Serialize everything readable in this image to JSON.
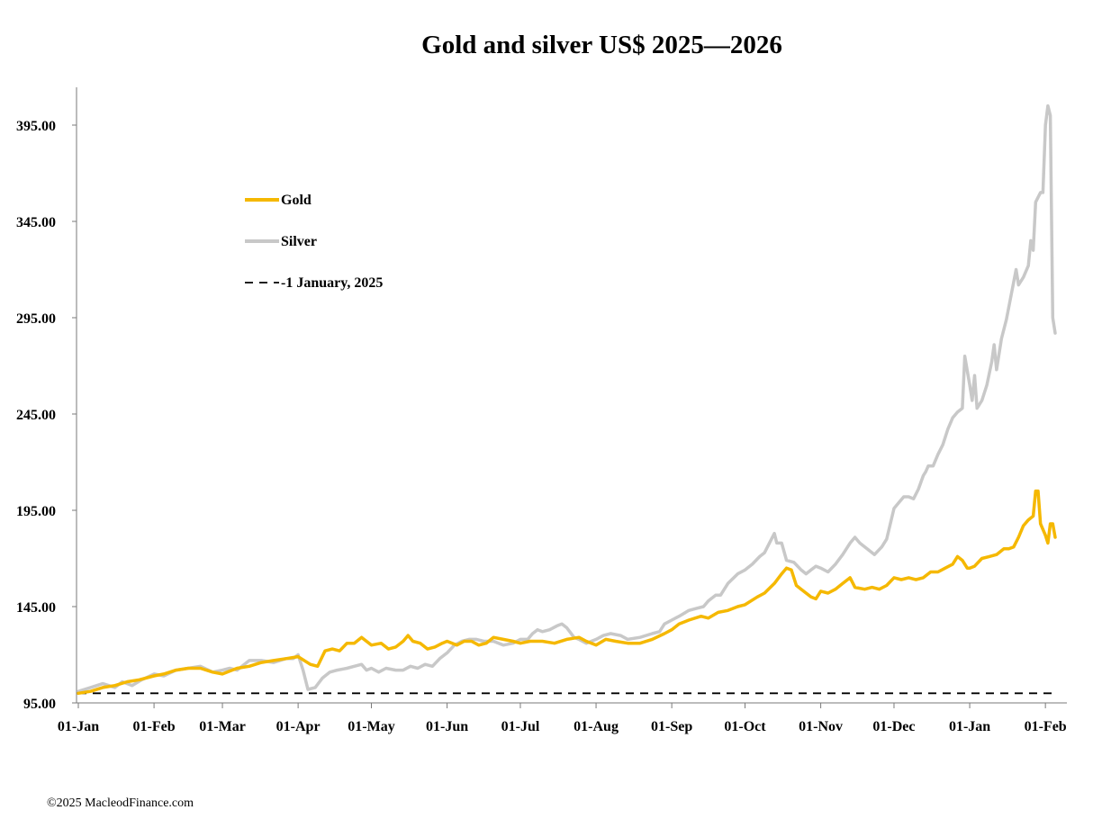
{
  "footer": {
    "credit": "©2025 MacleodFinance.com"
  },
  "colors": {
    "gold": "#F5B800",
    "silver": "#C8C8C8",
    "baseline": "#000000"
  },
  "chart_data": {
    "type": "line",
    "title": "Gold and silver  US$ 2025—2026",
    "xlabel": "",
    "ylabel": "",
    "ylim": [
      95,
      415
    ],
    "yticks": [
      95,
      145,
      195,
      245,
      295,
      345,
      395
    ],
    "ytick_labels": [
      "95.00",
      "145.00",
      "195.00",
      "245.00",
      "295.00",
      "345.00",
      "395.00"
    ],
    "xticks": [
      {
        "day": 0,
        "label": "01-Jan"
      },
      {
        "day": 31,
        "label": "01-Feb"
      },
      {
        "day": 59,
        "label": "01-Mar"
      },
      {
        "day": 90,
        "label": "01-Apr"
      },
      {
        "day": 120,
        "label": "01-May"
      },
      {
        "day": 151,
        "label": "01-Jun"
      },
      {
        "day": 181,
        "label": "01-Jul"
      },
      {
        "day": 212,
        "label": "01-Aug"
      },
      {
        "day": 243,
        "label": "01-Sep"
      },
      {
        "day": 273,
        "label": "01-Oct"
      },
      {
        "day": 304,
        "label": "01-Nov"
      },
      {
        "day": 334,
        "label": "01-Dec"
      },
      {
        "day": 365,
        "label": "01-Jan"
      },
      {
        "day": 396,
        "label": "01-Feb"
      }
    ],
    "xlim_days": [
      0,
      400
    ],
    "grid": false,
    "legend_position": "upper-left",
    "series": [
      {
        "name": "Gold",
        "style": "solid",
        "points": [
          [
            0,
            100
          ],
          [
            5,
            101
          ],
          [
            10,
            103
          ],
          [
            15,
            104
          ],
          [
            20,
            106
          ],
          [
            25,
            107
          ],
          [
            31,
            109
          ],
          [
            35,
            110
          ],
          [
            40,
            112
          ],
          [
            45,
            113
          ],
          [
            50,
            113
          ],
          [
            55,
            111
          ],
          [
            59,
            110
          ],
          [
            65,
            113
          ],
          [
            70,
            114
          ],
          [
            75,
            116
          ],
          [
            80,
            117
          ],
          [
            85,
            118
          ],
          [
            90,
            119
          ],
          [
            95,
            115
          ],
          [
            98,
            114
          ],
          [
            101,
            122
          ],
          [
            104,
            123
          ],
          [
            107,
            122
          ],
          [
            110,
            126
          ],
          [
            113,
            126
          ],
          [
            116,
            129
          ],
          [
            120,
            125
          ],
          [
            124,
            126
          ],
          [
            127,
            123
          ],
          [
            130,
            124
          ],
          [
            133,
            127
          ],
          [
            135,
            130
          ],
          [
            137,
            127
          ],
          [
            140,
            126
          ],
          [
            143,
            123
          ],
          [
            146,
            124
          ],
          [
            149,
            126
          ],
          [
            151,
            127
          ],
          [
            155,
            125
          ],
          [
            158,
            127
          ],
          [
            161,
            127
          ],
          [
            164,
            125
          ],
          [
            167,
            126
          ],
          [
            170,
            129
          ],
          [
            174,
            128
          ],
          [
            178,
            127
          ],
          [
            181,
            126
          ],
          [
            185,
            127
          ],
          [
            190,
            127
          ],
          [
            195,
            126
          ],
          [
            200,
            128
          ],
          [
            205,
            129
          ],
          [
            208,
            127
          ],
          [
            212,
            125
          ],
          [
            216,
            128
          ],
          [
            220,
            127
          ],
          [
            225,
            126
          ],
          [
            230,
            126
          ],
          [
            235,
            128
          ],
          [
            240,
            131
          ],
          [
            243,
            133
          ],
          [
            246,
            136
          ],
          [
            250,
            138
          ],
          [
            255,
            140
          ],
          [
            258,
            139
          ],
          [
            262,
            142
          ],
          [
            266,
            143
          ],
          [
            270,
            145
          ],
          [
            273,
            146
          ],
          [
            278,
            150
          ],
          [
            281,
            152
          ],
          [
            285,
            157
          ],
          [
            288,
            162
          ],
          [
            290,
            165
          ],
          [
            292,
            164
          ],
          [
            294,
            156
          ],
          [
            297,
            153
          ],
          [
            300,
            150
          ],
          [
            302,
            149
          ],
          [
            304,
            153
          ],
          [
            307,
            152
          ],
          [
            310,
            154
          ],
          [
            313,
            157
          ],
          [
            316,
            160
          ],
          [
            318,
            155
          ],
          [
            322,
            154
          ],
          [
            325,
            155
          ],
          [
            328,
            154
          ],
          [
            331,
            156
          ],
          [
            334,
            160
          ],
          [
            337,
            159
          ],
          [
            340,
            160
          ],
          [
            343,
            159
          ],
          [
            346,
            160
          ],
          [
            349,
            163
          ],
          [
            352,
            163
          ],
          [
            355,
            165
          ],
          [
            358,
            167
          ],
          [
            360,
            171
          ],
          [
            362,
            169
          ],
          [
            364,
            165
          ],
          [
            365,
            165
          ],
          [
            367,
            166
          ],
          [
            370,
            170
          ],
          [
            373,
            171
          ],
          [
            376,
            172
          ],
          [
            379,
            175
          ],
          [
            381,
            175
          ],
          [
            383,
            176
          ],
          [
            385,
            181
          ],
          [
            387,
            187
          ],
          [
            389,
            190
          ],
          [
            391,
            192
          ],
          [
            392,
            205
          ],
          [
            393,
            205
          ],
          [
            394,
            188
          ],
          [
            396,
            182
          ],
          [
            397,
            178
          ],
          [
            398,
            188
          ],
          [
            399,
            188
          ],
          [
            400,
            181
          ]
        ]
      },
      {
        "name": "Silver",
        "style": "solid",
        "points": [
          [
            0,
            101
          ],
          [
            5,
            103
          ],
          [
            10,
            105
          ],
          [
            15,
            103
          ],
          [
            18,
            106
          ],
          [
            22,
            104
          ],
          [
            26,
            107
          ],
          [
            31,
            110
          ],
          [
            35,
            109
          ],
          [
            40,
            112
          ],
          [
            45,
            113
          ],
          [
            50,
            114
          ],
          [
            55,
            111
          ],
          [
            59,
            112
          ],
          [
            62,
            113
          ],
          [
            65,
            112
          ],
          [
            70,
            117
          ],
          [
            75,
            117
          ],
          [
            80,
            116
          ],
          [
            85,
            118
          ],
          [
            88,
            118
          ],
          [
            90,
            120
          ],
          [
            92,
            112
          ],
          [
            94,
            102
          ],
          [
            97,
            103
          ],
          [
            100,
            108
          ],
          [
            103,
            111
          ],
          [
            106,
            112
          ],
          [
            110,
            113
          ],
          [
            113,
            114
          ],
          [
            116,
            115
          ],
          [
            118,
            112
          ],
          [
            120,
            113
          ],
          [
            123,
            111
          ],
          [
            126,
            113
          ],
          [
            130,
            112
          ],
          [
            133,
            112
          ],
          [
            136,
            114
          ],
          [
            139,
            113
          ],
          [
            142,
            115
          ],
          [
            145,
            114
          ],
          [
            148,
            118
          ],
          [
            151,
            121
          ],
          [
            154,
            125
          ],
          [
            157,
            127
          ],
          [
            160,
            128
          ],
          [
            163,
            128
          ],
          [
            166,
            127
          ],
          [
            170,
            127
          ],
          [
            174,
            125
          ],
          [
            178,
            126
          ],
          [
            181,
            128
          ],
          [
            184,
            128
          ],
          [
            186,
            131
          ],
          [
            188,
            133
          ],
          [
            190,
            132
          ],
          [
            193,
            133
          ],
          [
            196,
            135
          ],
          [
            198,
            136
          ],
          [
            200,
            134
          ],
          [
            203,
            129
          ],
          [
            205,
            128
          ],
          [
            208,
            126
          ],
          [
            212,
            128
          ],
          [
            215,
            130
          ],
          [
            218,
            131
          ],
          [
            222,
            130
          ],
          [
            225,
            128
          ],
          [
            230,
            129
          ],
          [
            235,
            131
          ],
          [
            238,
            132
          ],
          [
            240,
            136
          ],
          [
            243,
            138
          ],
          [
            246,
            140
          ],
          [
            250,
            143
          ],
          [
            253,
            144
          ],
          [
            256,
            145
          ],
          [
            258,
            148
          ],
          [
            261,
            151
          ],
          [
            263,
            151
          ],
          [
            266,
            157
          ],
          [
            270,
            162
          ],
          [
            273,
            164
          ],
          [
            276,
            167
          ],
          [
            279,
            171
          ],
          [
            281,
            173
          ],
          [
            283,
            178
          ],
          [
            285,
            183
          ],
          [
            286,
            178
          ],
          [
            288,
            178
          ],
          [
            290,
            169
          ],
          [
            293,
            168
          ],
          [
            296,
            164
          ],
          [
            298,
            162
          ],
          [
            300,
            164
          ],
          [
            302,
            166
          ],
          [
            304,
            165
          ],
          [
            307,
            163
          ],
          [
            310,
            167
          ],
          [
            313,
            172
          ],
          [
            316,
            178
          ],
          [
            318,
            181
          ],
          [
            320,
            178
          ],
          [
            323,
            175
          ],
          [
            326,
            172
          ],
          [
            329,
            176
          ],
          [
            331,
            180
          ],
          [
            334,
            196
          ],
          [
            336,
            199
          ],
          [
            338,
            202
          ],
          [
            340,
            202
          ],
          [
            342,
            201
          ],
          [
            344,
            206
          ],
          [
            346,
            213
          ],
          [
            347,
            215
          ],
          [
            348,
            218
          ],
          [
            350,
            218
          ],
          [
            352,
            224
          ],
          [
            354,
            229
          ],
          [
            356,
            237
          ],
          [
            358,
            243
          ],
          [
            360,
            246
          ],
          [
            362,
            248
          ],
          [
            363,
            275
          ],
          [
            365,
            260
          ],
          [
            366,
            252
          ],
          [
            367,
            265
          ],
          [
            368,
            248
          ],
          [
            370,
            252
          ],
          [
            372,
            260
          ],
          [
            374,
            272
          ],
          [
            375,
            281
          ],
          [
            376,
            268
          ],
          [
            378,
            284
          ],
          [
            380,
            294
          ],
          [
            382,
            307
          ],
          [
            384,
            320
          ],
          [
            385,
            312
          ],
          [
            387,
            316
          ],
          [
            389,
            322
          ],
          [
            390,
            335
          ],
          [
            391,
            330
          ],
          [
            392,
            355
          ],
          [
            394,
            360
          ],
          [
            395,
            360
          ],
          [
            396,
            395
          ],
          [
            397,
            405
          ],
          [
            398,
            400
          ],
          [
            399,
            295
          ],
          [
            400,
            287
          ]
        ]
      },
      {
        "name": "-1 January, 2025",
        "style": "dashed",
        "points": [
          [
            0,
            100
          ],
          [
            400,
            100
          ]
        ]
      }
    ]
  }
}
